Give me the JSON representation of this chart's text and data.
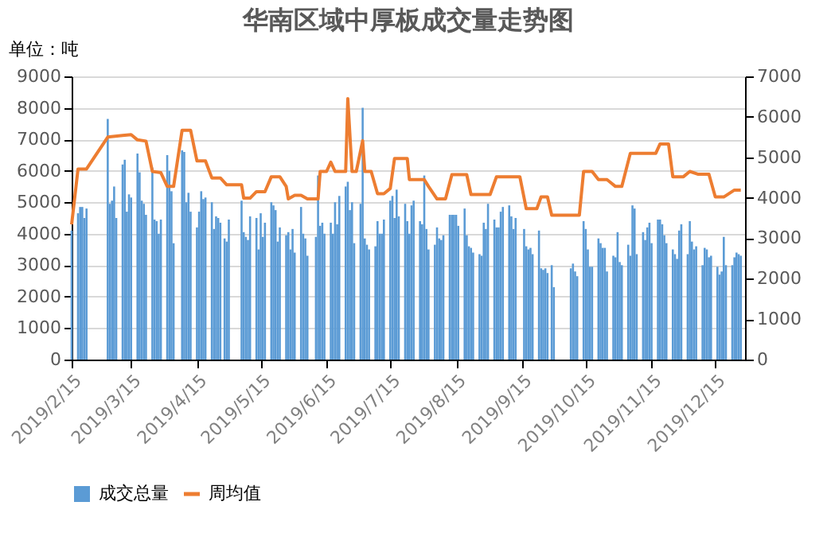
{
  "chart_data": {
    "type": "bar",
    "title": "华南区域中厚板成交量走势图",
    "ylabel": "单位：吨",
    "xlim": [
      "2019-02-15",
      "2019-12-29"
    ],
    "xticks": [
      {
        "value": "2019-02-15",
        "label": "2019/2/15"
      },
      {
        "value": "2019-03-15",
        "label": "2019/3/15"
      },
      {
        "value": "2019-04-15",
        "label": "2019/4/15"
      },
      {
        "value": "2019-05-15",
        "label": "2019/5/15"
      },
      {
        "value": "2019-06-15",
        "label": "2019/6/15"
      },
      {
        "value": "2019-07-15",
        "label": "2019/7/15"
      },
      {
        "value": "2019-08-15",
        "label": "2019/8/15"
      },
      {
        "value": "2019-09-15",
        "label": "2019/9/15"
      },
      {
        "value": "2019-10-15",
        "label": "2019/10/15"
      },
      {
        "value": "2019-11-15",
        "label": "2019/11/15"
      },
      {
        "value": "2019-12-15",
        "label": "2019/12/15"
      }
    ],
    "ylim": [
      0,
      9000
    ],
    "yticks": [
      0,
      1000,
      2000,
      3000,
      4000,
      5000,
      6000,
      7000,
      8000,
      9000
    ],
    "y2lim": [
      0,
      7000
    ],
    "y2ticks": [
      0,
      1000,
      2000,
      3000,
      4000,
      5000,
      6000,
      7000
    ],
    "grid": "y",
    "legend": "bottom",
    "series": [
      {
        "name": "成交总量",
        "color": "#5b9bd5",
        "x": [
          "2019-02-15",
          "2019-02-18",
          "2019-02-19",
          "2019-02-20",
          "2019-02-21",
          "2019-02-22",
          "2019-03-04",
          "2019-03-05",
          "2019-03-06",
          "2019-03-07",
          "2019-03-08",
          "2019-03-11",
          "2019-03-12",
          "2019-03-13",
          "2019-03-14",
          "2019-03-15",
          "2019-03-18",
          "2019-03-19",
          "2019-03-20",
          "2019-03-21",
          "2019-03-22",
          "2019-03-25",
          "2019-03-26",
          "2019-03-27",
          "2019-03-28",
          "2019-03-29",
          "2019-04-01",
          "2019-04-02",
          "2019-04-03",
          "2019-04-04",
          "2019-04-08",
          "2019-04-09",
          "2019-04-10",
          "2019-04-11",
          "2019-04-12",
          "2019-04-15",
          "2019-04-16",
          "2019-04-17",
          "2019-04-18",
          "2019-04-19",
          "2019-04-22",
          "2019-04-23",
          "2019-04-24",
          "2019-04-25",
          "2019-04-26",
          "2019-04-28",
          "2019-04-29",
          "2019-04-30",
          "2019-05-06",
          "2019-05-07",
          "2019-05-08",
          "2019-05-09",
          "2019-05-10",
          "2019-05-13",
          "2019-05-14",
          "2019-05-15",
          "2019-05-16",
          "2019-05-17",
          "2019-05-20",
          "2019-05-21",
          "2019-05-22",
          "2019-05-23",
          "2019-05-24",
          "2019-05-27",
          "2019-05-28",
          "2019-05-29",
          "2019-05-30",
          "2019-05-31",
          "2019-06-03",
          "2019-06-04",
          "2019-06-05",
          "2019-06-06",
          "2019-06-10",
          "2019-06-11",
          "2019-06-12",
          "2019-06-13",
          "2019-06-14",
          "2019-06-17",
          "2019-06-18",
          "2019-06-19",
          "2019-06-20",
          "2019-06-21",
          "2019-06-24",
          "2019-06-25",
          "2019-06-26",
          "2019-06-27",
          "2019-06-28",
          "2019-07-01",
          "2019-07-02",
          "2019-07-03",
          "2019-07-04",
          "2019-07-05",
          "2019-07-08",
          "2019-07-09",
          "2019-07-10",
          "2019-07-11",
          "2019-07-12",
          "2019-07-15",
          "2019-07-16",
          "2019-07-17",
          "2019-07-18",
          "2019-07-19",
          "2019-07-22",
          "2019-07-23",
          "2019-07-24",
          "2019-07-25",
          "2019-07-26",
          "2019-07-29",
          "2019-07-30",
          "2019-07-31",
          "2019-08-01",
          "2019-08-02",
          "2019-08-05",
          "2019-08-06",
          "2019-08-07",
          "2019-08-08",
          "2019-08-09",
          "2019-08-12",
          "2019-08-13",
          "2019-08-14",
          "2019-08-15",
          "2019-08-16",
          "2019-08-19",
          "2019-08-20",
          "2019-08-21",
          "2019-08-22",
          "2019-08-23",
          "2019-08-26",
          "2019-08-27",
          "2019-08-28",
          "2019-08-29",
          "2019-08-30",
          "2019-09-02",
          "2019-09-03",
          "2019-09-04",
          "2019-09-05",
          "2019-09-06",
          "2019-09-09",
          "2019-09-10",
          "2019-09-11",
          "2019-09-12",
          "2019-09-16",
          "2019-09-17",
          "2019-09-18",
          "2019-09-19",
          "2019-09-20",
          "2019-09-23",
          "2019-09-24",
          "2019-09-25",
          "2019-09-26",
          "2019-09-27",
          "2019-09-29",
          "2019-09-30",
          "2019-10-08",
          "2019-10-09",
          "2019-10-10",
          "2019-10-11",
          "2019-10-14",
          "2019-10-15",
          "2019-10-16",
          "2019-10-17",
          "2019-10-18",
          "2019-10-21",
          "2019-10-22",
          "2019-10-23",
          "2019-10-24",
          "2019-10-25",
          "2019-10-28",
          "2019-10-29",
          "2019-10-30",
          "2019-10-31",
          "2019-11-01",
          "2019-11-04",
          "2019-11-05",
          "2019-11-06",
          "2019-11-07",
          "2019-11-08",
          "2019-11-11",
          "2019-11-12",
          "2019-11-13",
          "2019-11-14",
          "2019-11-15",
          "2019-11-18",
          "2019-11-19",
          "2019-11-20",
          "2019-11-21",
          "2019-11-22",
          "2019-11-25",
          "2019-11-26",
          "2019-11-27",
          "2019-11-28",
          "2019-11-29",
          "2019-12-02",
          "2019-12-03",
          "2019-12-04",
          "2019-12-05",
          "2019-12-06",
          "2019-12-09",
          "2019-12-10",
          "2019-12-11",
          "2019-12-12",
          "2019-12-13",
          "2019-12-16",
          "2019-12-17",
          "2019-12-18",
          "2019-12-19",
          "2019-12-20",
          "2019-12-23",
          "2019-12-24",
          "2019-12-25",
          "2019-12-26",
          "2019-12-27"
        ],
        "values": [
          4100,
          4650,
          4850,
          4850,
          4500,
          4800,
          7650,
          4950,
          5050,
          5500,
          4500,
          6200,
          6350,
          4700,
          5250,
          5150,
          6550,
          5950,
          5050,
          4950,
          4600,
          6100,
          4450,
          4400,
          4000,
          4450,
          6500,
          6000,
          5350,
          3700,
          6650,
          6600,
          5000,
          5300,
          4700,
          4200,
          4700,
          5350,
          5100,
          5150,
          5000,
          4150,
          4550,
          4500,
          4350,
          3850,
          3750,
          4450,
          5050,
          4050,
          3900,
          3800,
          4550,
          4500,
          3500,
          4650,
          3900,
          4350,
          5000,
          4900,
          4750,
          3750,
          4200,
          3950,
          4050,
          3500,
          4150,
          3400,
          4850,
          4000,
          3850,
          3300,
          3900,
          5850,
          4250,
          4350,
          4000,
          4350,
          4000,
          5000,
          4300,
          5200,
          5500,
          5650,
          4750,
          5000,
          3700,
          4950,
          8000,
          3850,
          3650,
          3500,
          3600,
          4400,
          4000,
          4000,
          4450,
          5050,
          5200,
          4500,
          5400,
          4550,
          4950,
          4400,
          4000,
          4900,
          5050,
          4400,
          4300,
          5850,
          4150,
          3500,
          3650,
          4200,
          3850,
          3800,
          3950,
          4600,
          4600,
          4600,
          4600,
          4250,
          4800,
          3950,
          3600,
          3550,
          3400,
          3350,
          3300,
          4350,
          4150,
          4950,
          4450,
          4200,
          4200,
          4700,
          4850,
          4900,
          4550,
          4150,
          4500,
          4150,
          3600,
          3500,
          3550,
          3350,
          4100,
          2900,
          2850,
          2900,
          2750,
          3000,
          2300,
          2900,
          3050,
          2800,
          2650,
          4400,
          4150,
          3500,
          2950,
          2950,
          3850,
          3700,
          3550,
          3550,
          2800,
          3300,
          3250,
          4050,
          3100,
          3000,
          3650,
          3300,
          4900,
          4800,
          3350,
          4050,
          3800,
          4200,
          4350,
          3700,
          4450,
          4450,
          4300,
          3950,
          3700,
          3500,
          3350,
          3200,
          4100,
          4300,
          3350,
          4400,
          3750,
          3500,
          3600,
          3000,
          3550,
          3500,
          3250,
          3300,
          2950,
          2700,
          2800,
          3900,
          3000,
          3000,
          3250,
          3400,
          3350,
          3300
        ]
      },
      {
        "name": "周均值",
        "type": "line",
        "axis": "y2",
        "color": "#ed7d31",
        "x": [
          "2019-02-15",
          "2019-02-18",
          "2019-02-22",
          "2019-03-04",
          "2019-03-11",
          "2019-03-15",
          "2019-03-18",
          "2019-03-22",
          "2019-03-25",
          "2019-03-29",
          "2019-04-01",
          "2019-04-04",
          "2019-04-08",
          "2019-04-12",
          "2019-04-15",
          "2019-04-19",
          "2019-04-22",
          "2019-04-26",
          "2019-04-29",
          "2019-05-06",
          "2019-05-07",
          "2019-05-10",
          "2019-05-13",
          "2019-05-17",
          "2019-05-20",
          "2019-05-24",
          "2019-05-27",
          "2019-05-28",
          "2019-05-31",
          "2019-06-03",
          "2019-06-06",
          "2019-06-11",
          "2019-06-12",
          "2019-06-15",
          "2019-06-17",
          "2019-06-19",
          "2019-06-22",
          "2019-06-24",
          "2019-06-25",
          "2019-06-27",
          "2019-06-29",
          "2019-07-02",
          "2019-07-03",
          "2019-07-06",
          "2019-07-09",
          "2019-07-12",
          "2019-07-15",
          "2019-07-17",
          "2019-07-23",
          "2019-07-24",
          "2019-07-31",
          "2019-08-02",
          "2019-08-06",
          "2019-08-10",
          "2019-08-13",
          "2019-08-20",
          "2019-08-22",
          "2019-08-31",
          "2019-09-03",
          "2019-09-14",
          "2019-09-17",
          "2019-09-22",
          "2019-09-24",
          "2019-09-27",
          "2019-09-29",
          "2019-10-12",
          "2019-10-14",
          "2019-10-18",
          "2019-10-21",
          "2019-10-25",
          "2019-10-29",
          "2019-11-01",
          "2019-11-05",
          "2019-11-17",
          "2019-11-19",
          "2019-11-23",
          "2019-11-25",
          "2019-11-30",
          "2019-12-03",
          "2019-12-07",
          "2019-12-12",
          "2019-12-15",
          "2019-12-19",
          "2019-12-24",
          "2019-12-27"
        ],
        "values": [
          3340,
          4710,
          4710,
          5500,
          5540,
          5560,
          5430,
          5400,
          4650,
          4620,
          4280,
          4280,
          5670,
          5670,
          4910,
          4910,
          4490,
          4490,
          4320,
          4320,
          3990,
          3990,
          4150,
          4150,
          4520,
          4520,
          4280,
          3970,
          4060,
          4060,
          3970,
          3970,
          4650,
          4650,
          4880,
          4650,
          4650,
          4650,
          6450,
          4650,
          4650,
          5410,
          4650,
          4650,
          4100,
          4100,
          4230,
          4970,
          4970,
          4450,
          4450,
          4280,
          3970,
          3970,
          4570,
          4570,
          4080,
          4080,
          4520,
          4520,
          3730,
          3730,
          4020,
          4020,
          3570,
          3570,
          4650,
          4650,
          4450,
          4450,
          4280,
          4280,
          5100,
          5100,
          5330,
          5330,
          4520,
          4520,
          4650,
          4580,
          4580,
          4020,
          4020,
          4190,
          4190
        ]
      }
    ]
  }
}
